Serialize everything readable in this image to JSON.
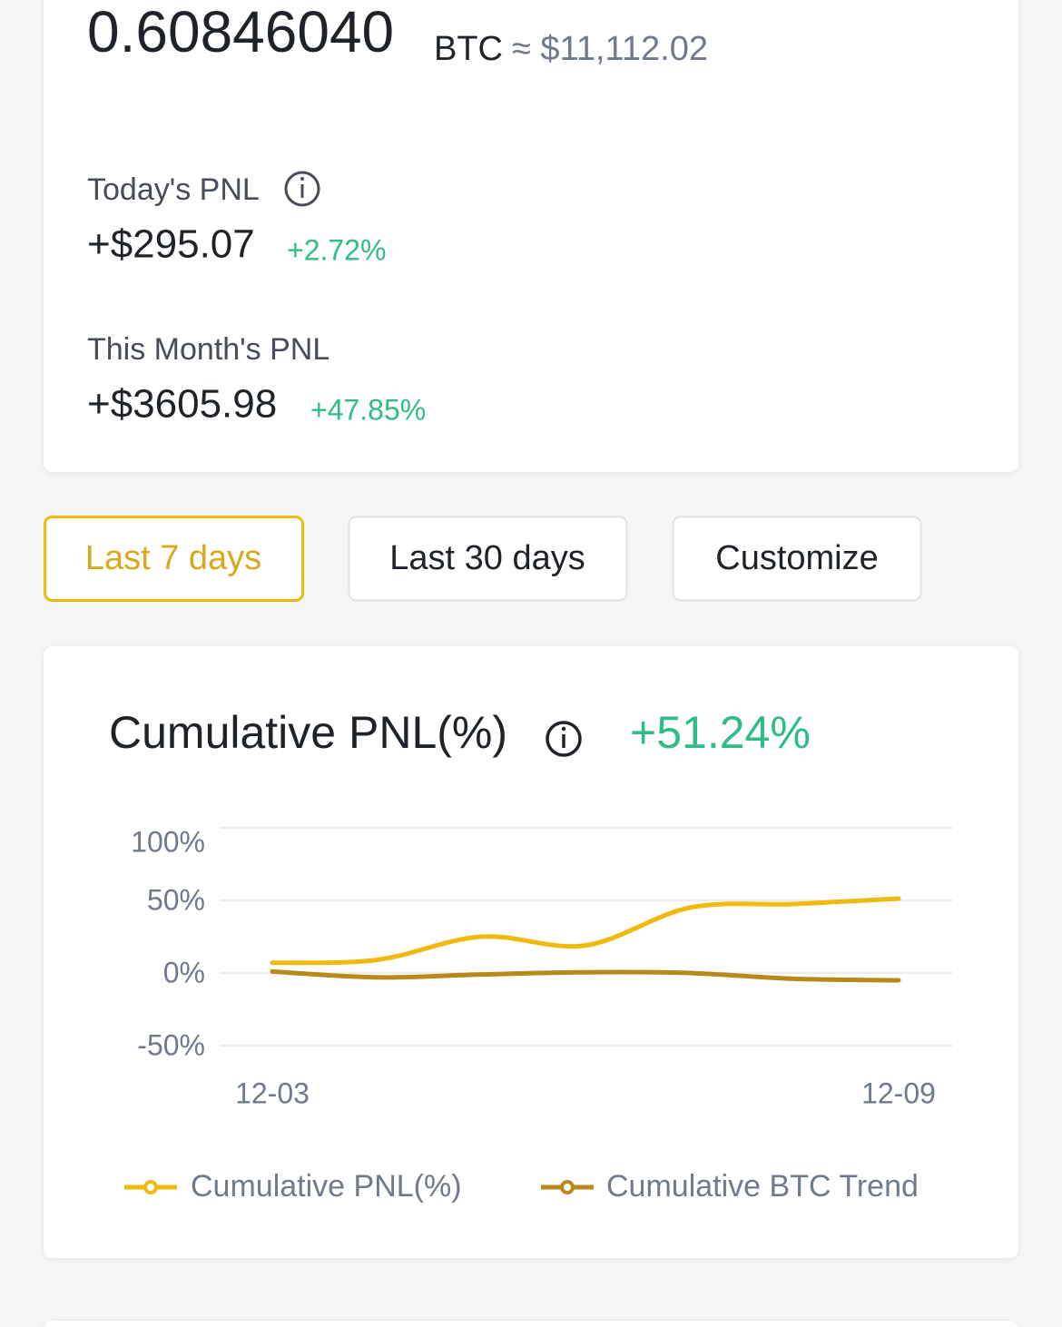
{
  "header": {
    "balance": "0.60846040",
    "unit": "BTC",
    "approx": "≈ $11,112.02"
  },
  "today": {
    "label": "Today's PNL",
    "value": "+$295.07",
    "change": "+2.72%"
  },
  "month": {
    "label": "This Month's PNL",
    "value": "+$3605.98",
    "change": "+47.85%"
  },
  "tabs": [
    "Last 7 days",
    "Last 30 days",
    "Customize"
  ],
  "chart_data": {
    "type": "line",
    "title": "Cumulative PNL(%)",
    "annotation": "+51.24%",
    "categories": [
      "12-03",
      null,
      null,
      null,
      null,
      null,
      "12-09"
    ],
    "series": [
      {
        "name": "Cumulative PNL(%)",
        "color": "#f0b90b",
        "values": [
          7,
          9,
          25,
          19,
          45,
          47.5,
          51.24
        ]
      },
      {
        "name": "Cumulative BTC Trend",
        "color": "#b8891a",
        "values": [
          1,
          -3,
          -1,
          0.5,
          0,
          -4,
          -5
        ]
      }
    ],
    "ylim": [
      -50,
      100
    ],
    "yticks": [
      {
        "value": -50,
        "label": "-50%"
      },
      {
        "value": 0,
        "label": "0%"
      },
      {
        "value": 50,
        "label": "50%"
      },
      {
        "value": 100,
        "label": "100%"
      }
    ],
    "grid": true
  }
}
